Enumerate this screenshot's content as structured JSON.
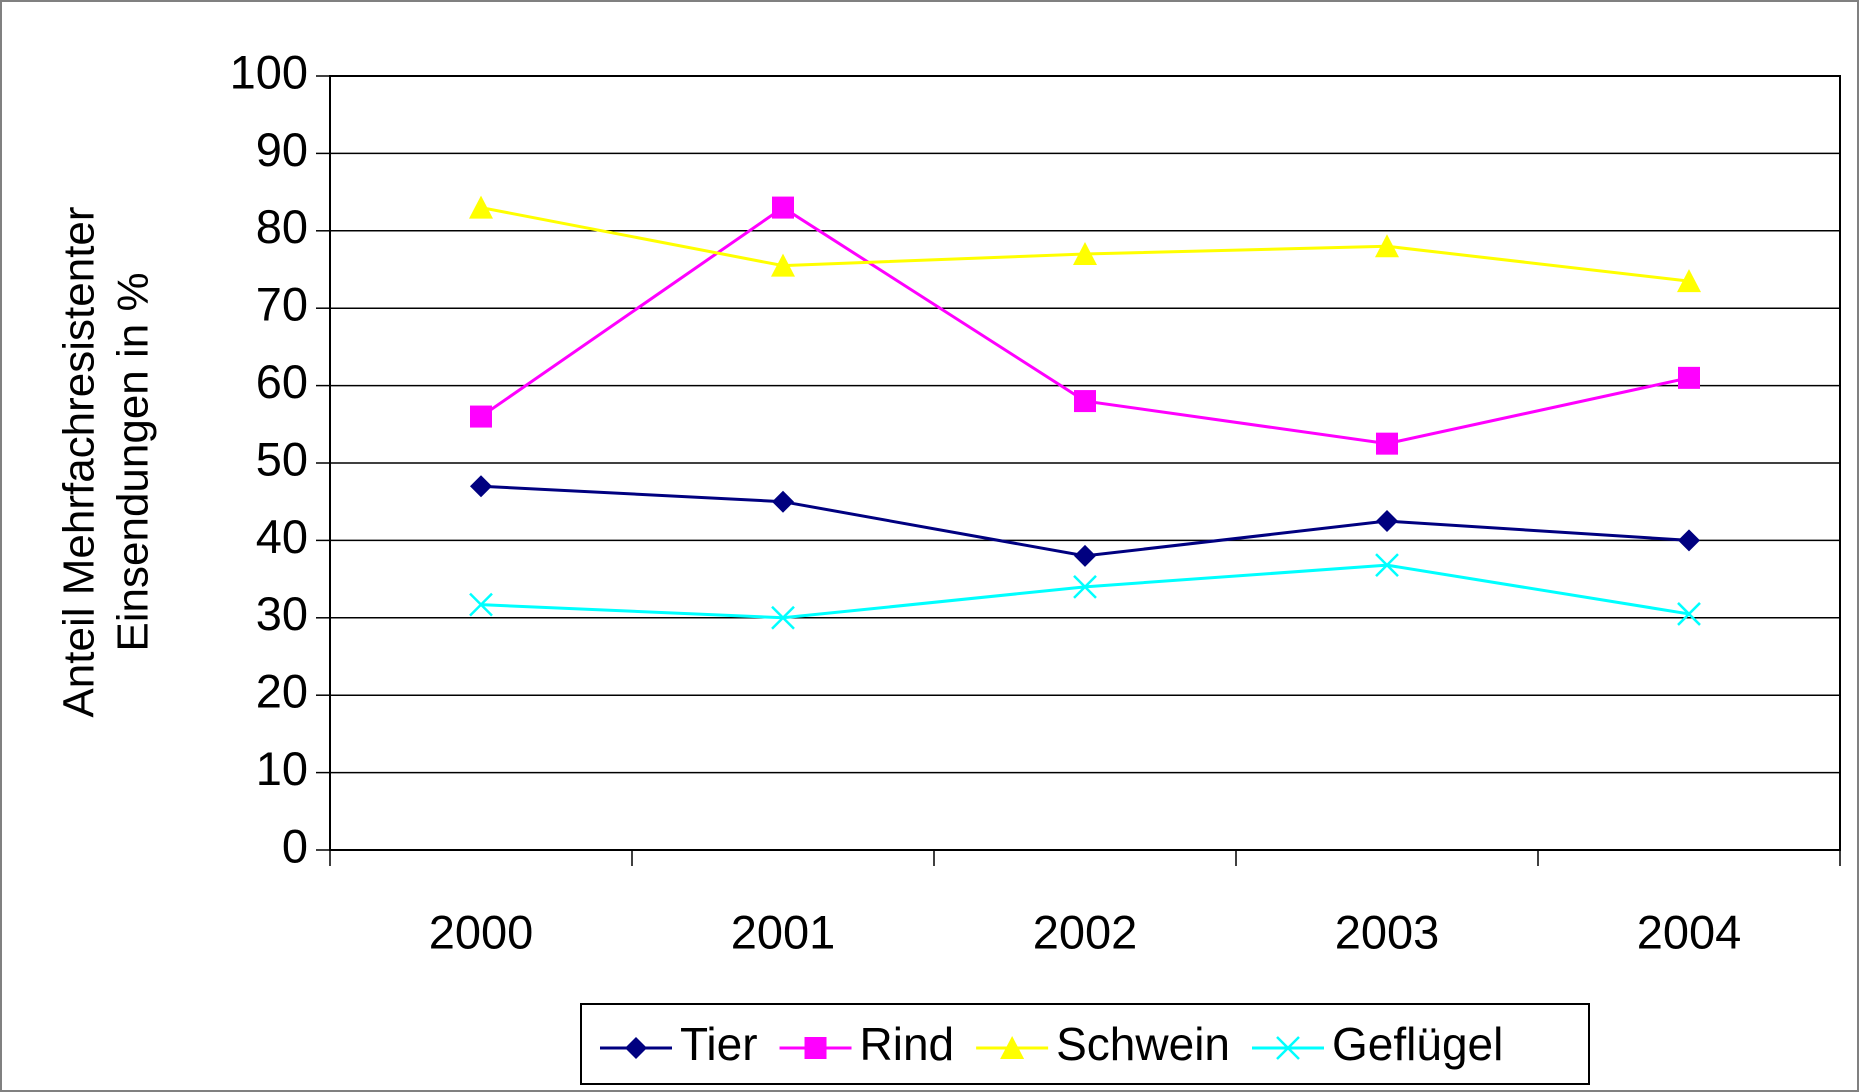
{
  "chart_data": {
    "type": "line",
    "ylabel": [
      "Anteil Mehrfachresistenter",
      "Einsendungen in %"
    ],
    "categories": [
      "2000",
      "2001",
      "2002",
      "2003",
      "2004"
    ],
    "series": [
      {
        "name": "Tier",
        "color": "#000080",
        "marker": "diamond",
        "values": [
          47,
          45,
          38,
          42.5,
          40
        ]
      },
      {
        "name": "Rind",
        "color": "#ff00ff",
        "marker": "square",
        "values": [
          56,
          83,
          58,
          52.5,
          61
        ]
      },
      {
        "name": "Schwein",
        "color": "#ffff00",
        "marker": "triangle",
        "values": [
          83,
          75.5,
          77,
          78,
          73.5
        ]
      },
      {
        "name": "Geflügel",
        "color": "#00ffff",
        "marker": "x",
        "values": [
          31.7,
          30,
          34,
          36.8,
          30.5
        ]
      }
    ],
    "ylim": [
      0,
      100
    ],
    "yticks": [
      0,
      10,
      20,
      30,
      40,
      50,
      60,
      70,
      80,
      90,
      100
    ],
    "grid": true,
    "legend": "bottom"
  }
}
